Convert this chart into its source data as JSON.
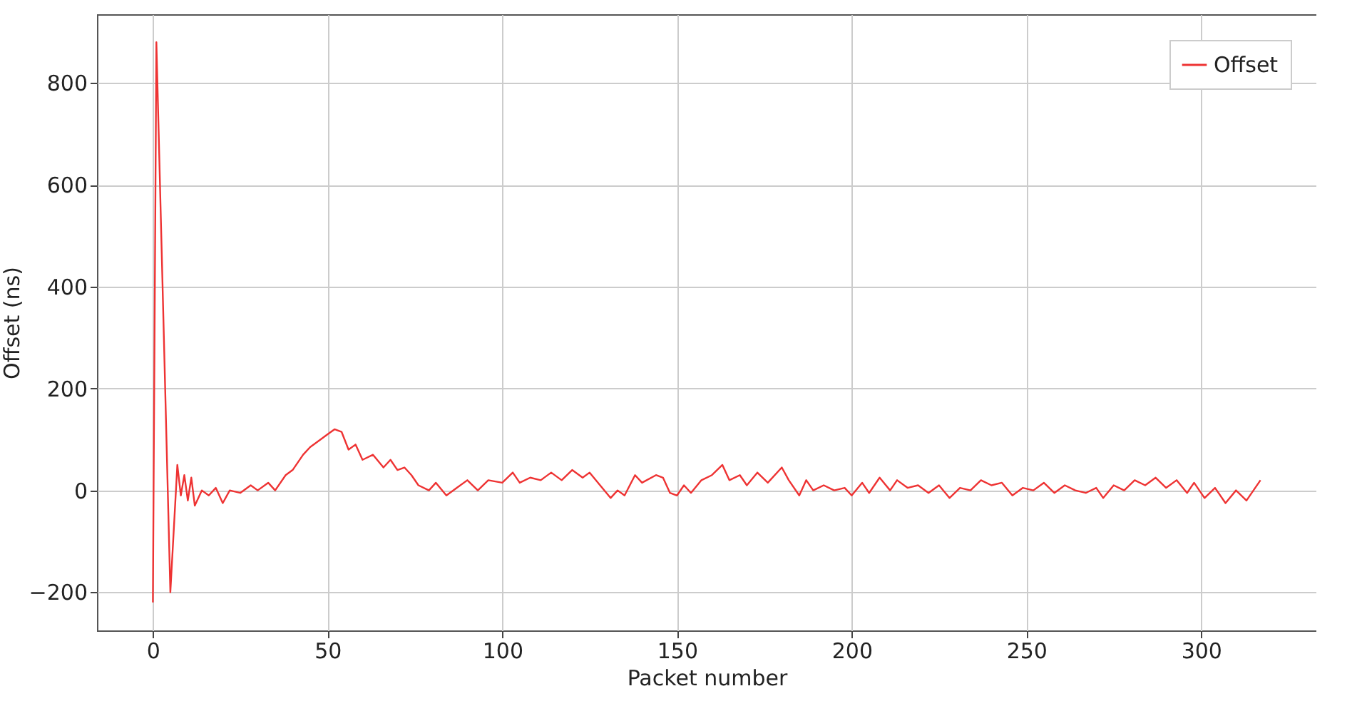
{
  "chart_data": {
    "type": "line",
    "xlabel": "Packet number",
    "ylabel": "Offset (ns)",
    "xlim": [
      -16,
      333
    ],
    "xticks": [
      0,
      50,
      100,
      150,
      200,
      250,
      300
    ],
    "ylim": [
      -275,
      935
    ],
    "yticks": [
      -200,
      0,
      200,
      400,
      600,
      800
    ],
    "grid": true,
    "legend": "top right",
    "x": [
      0,
      1,
      5,
      7,
      8,
      9,
      10,
      11,
      12,
      14,
      16,
      18,
      20,
      22,
      25,
      28,
      30,
      33,
      35,
      38,
      40,
      43,
      45,
      48,
      50,
      52,
      54,
      56,
      58,
      60,
      63,
      66,
      68,
      70,
      72,
      74,
      76,
      79,
      81,
      84,
      87,
      90,
      93,
      96,
      100,
      103,
      105,
      108,
      111,
      114,
      117,
      120,
      123,
      125,
      128,
      131,
      133,
      135,
      138,
      140,
      144,
      146,
      148,
      150,
      152,
      154,
      157,
      160,
      163,
      165,
      168,
      170,
      173,
      176,
      180,
      182,
      185,
      187,
      189,
      192,
      195,
      198,
      200,
      203,
      205,
      208,
      211,
      213,
      216,
      219,
      222,
      225,
      228,
      231,
      234,
      237,
      240,
      243,
      246,
      249,
      252,
      255,
      258,
      261,
      264,
      267,
      270,
      272,
      275,
      278,
      281,
      284,
      287,
      290,
      293,
      296,
      298,
      301,
      304,
      307,
      310,
      313,
      317
    ],
    "series": [
      {
        "name": "Offset",
        "color": "#ee3333",
        "values": [
          -220,
          880,
          -200,
          50,
          -10,
          30,
          -20,
          25,
          -30,
          0,
          -10,
          5,
          -25,
          0,
          -5,
          10,
          0,
          15,
          0,
          30,
          40,
          70,
          85,
          100,
          110,
          120,
          115,
          80,
          90,
          60,
          70,
          45,
          60,
          40,
          45,
          30,
          10,
          0,
          15,
          -10,
          5,
          20,
          0,
          20,
          15,
          35,
          15,
          25,
          20,
          35,
          20,
          40,
          25,
          35,
          10,
          -15,
          0,
          -10,
          30,
          15,
          30,
          25,
          -5,
          -10,
          10,
          -5,
          20,
          30,
          50,
          20,
          30,
          10,
          35,
          15,
          45,
          20,
          -10,
          20,
          0,
          10,
          0,
          5,
          -10,
          15,
          -5,
          25,
          0,
          20,
          5,
          10,
          -5,
          10,
          -15,
          5,
          0,
          20,
          10,
          15,
          -10,
          5,
          0,
          15,
          -5,
          10,
          0,
          -5,
          5,
          -15,
          10,
          0,
          20,
          10,
          25,
          5,
          20,
          -5,
          15,
          -15,
          5,
          -25,
          0,
          -20,
          20
        ]
      }
    ]
  }
}
